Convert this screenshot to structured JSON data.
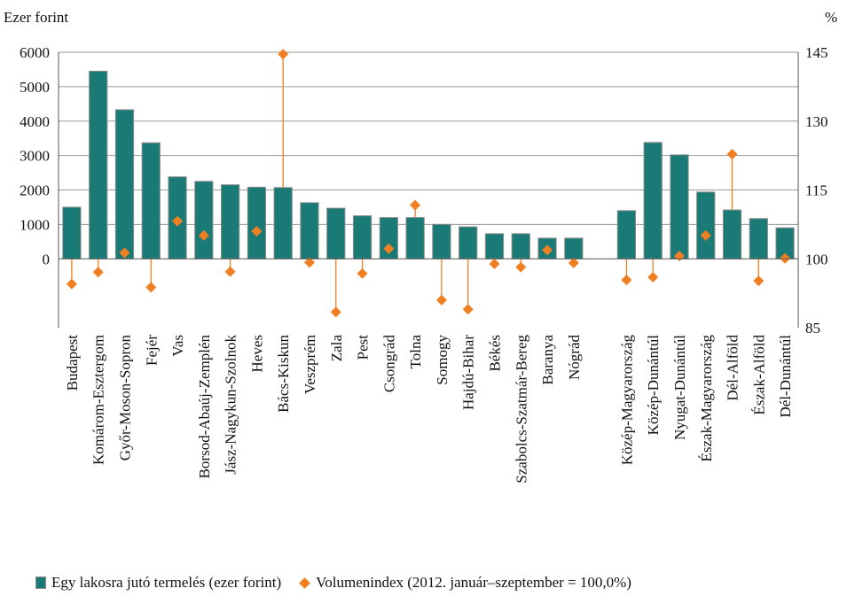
{
  "chart_data": {
    "type": "bar",
    "left_axis_title": "Ezer forint",
    "right_axis_title": "%",
    "left_ylim": [
      -2000,
      6000
    ],
    "left_ticks": [
      0,
      1000,
      2000,
      3000,
      4000,
      5000,
      6000
    ],
    "right_ylim": [
      85,
      145
    ],
    "right_ticks": [
      85,
      100,
      115,
      130,
      145
    ],
    "grid": true,
    "legend_position": "bottom",
    "categories": [
      "Budapest",
      "Komárom-Esztergom",
      "Győr-Moson-Sopron",
      "Fejér",
      "Vas",
      "Borsod-Abaúj-Zemplén",
      "Jász-Nagykun-Szolnok",
      "Heves",
      "Bács-Kiskun",
      "Veszprém",
      "Zala",
      "Pest",
      "Csongrád",
      "Tolna",
      "Somogy",
      "Hajdú-Bihar",
      "Békés",
      "Szabolcs-Szatmár-Bereg",
      "Baranya",
      "Nógrád",
      "Közép-Magyarország",
      "Közép-Dunántúl",
      "Nyugat-Dunántúl",
      "Észak-Magyarország",
      "Dél-Alföld",
      "Észak-Alföld",
      "Dél-Dunántúl"
    ],
    "gap_after_index": 19,
    "series": [
      {
        "name": "Egy lakosra jutó termelés (ezer forint)",
        "axis": "left",
        "color": "#1a7a76",
        "values": [
          1500,
          5450,
          4330,
          3370,
          2380,
          2250,
          2150,
          2080,
          2070,
          1630,
          1470,
          1250,
          1200,
          1200,
          1000,
          930,
          730,
          730,
          600,
          600,
          1400,
          3380,
          3020,
          1940,
          1420,
          1170,
          900
        ]
      },
      {
        "name": "Volumenindex (2012. január–szeptember = 100,0%)",
        "axis": "right",
        "color": "#f07f22",
        "values": [
          94.5,
          97.1,
          101.3,
          93.8,
          108.2,
          105.1,
          97.2,
          106.0,
          144.6,
          99.2,
          88.4,
          96.8,
          102.2,
          111.7,
          91.0,
          89.0,
          98.9,
          98.2,
          101.9,
          99.1,
          95.4,
          96.0,
          100.6,
          105.1,
          122.8,
          95.2,
          100.1
        ]
      }
    ]
  }
}
